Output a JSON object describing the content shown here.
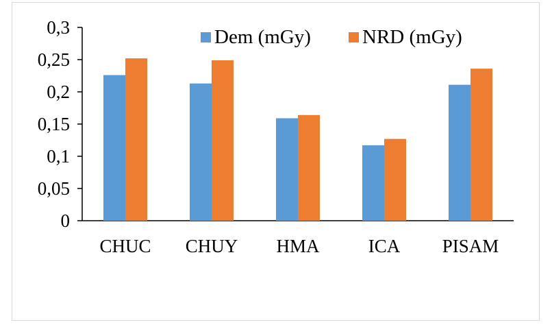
{
  "chart_data": {
    "type": "bar",
    "categories": [
      "CHUC",
      "CHUY",
      "HMA",
      "ICA",
      "PISAM"
    ],
    "series": [
      {
        "name": "Dem (mGy)",
        "color": "#5b9bd5",
        "values": [
          0.226,
          0.213,
          0.159,
          0.117,
          0.211
        ]
      },
      {
        "name": "NRD (mGy)",
        "color": "#ed7d31",
        "values": [
          0.252,
          0.249,
          0.164,
          0.127,
          0.236
        ]
      }
    ],
    "y_ticks": [
      "0",
      "0,05",
      "0,1",
      "0,15",
      "0,2",
      "0,25",
      "0,3"
    ],
    "ylim": [
      0,
      0.3
    ],
    "grid": false,
    "legend_position": "top-right"
  }
}
